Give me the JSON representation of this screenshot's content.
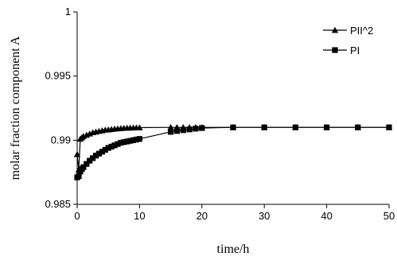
{
  "chart_data": {
    "type": "line",
    "title": "",
    "xlabel": "time/h",
    "ylabel": "molar fraction component A",
    "xlim": [
      0,
      50
    ],
    "ylim": [
      0.985,
      1
    ],
    "x_ticks": [
      "0",
      "10",
      "20",
      "30",
      "40",
      "50"
    ],
    "y_ticks": [
      "0.985",
      "0.99",
      "0.995",
      "1"
    ],
    "grid": false,
    "legend_position": "top-right",
    "series": [
      {
        "name": "PII^2",
        "marker": "triangle",
        "color": "#000000",
        "x": [
          0,
          0.25,
          0.5,
          0.75,
          1,
          1.5,
          2,
          2.5,
          3,
          3.5,
          4,
          4.5,
          5,
          5.5,
          6,
          6.5,
          7,
          7.5,
          8,
          8.5,
          9,
          9.5,
          10,
          15,
          16,
          17,
          18,
          19,
          20,
          25,
          30,
          35,
          40,
          45,
          50
        ],
        "y": [
          0.9889,
          0.9877,
          0.9901,
          0.9902,
          0.9903,
          0.9904,
          0.9905,
          0.9906,
          0.99065,
          0.9907,
          0.99075,
          0.9908,
          0.99082,
          0.99085,
          0.99088,
          0.9909,
          0.99092,
          0.99094,
          0.99095,
          0.99096,
          0.99097,
          0.99098,
          0.99098,
          0.991,
          0.991,
          0.991,
          0.991,
          0.991,
          0.991,
          0.991,
          0.991,
          0.991,
          0.991,
          0.991,
          0.991
        ]
      },
      {
        "name": "PI",
        "marker": "square",
        "color": "#000000",
        "x": [
          0,
          0.25,
          0.5,
          0.75,
          1,
          1.5,
          2,
          2.5,
          3,
          3.5,
          4,
          4.5,
          5,
          5.5,
          6,
          6.5,
          7,
          7.5,
          8,
          8.5,
          9,
          9.5,
          10,
          15,
          16,
          17,
          18,
          19,
          20,
          25,
          30,
          35,
          40,
          45,
          50
        ],
        "y": [
          0.9871,
          0.9872,
          0.98755,
          0.98775,
          0.9879,
          0.98815,
          0.9884,
          0.9886,
          0.9888,
          0.98895,
          0.9891,
          0.98925,
          0.9894,
          0.9895,
          0.9896,
          0.9897,
          0.9898,
          0.98985,
          0.9899,
          0.98995,
          0.99,
          0.99005,
          0.9901,
          0.99065,
          0.99072,
          0.99078,
          0.99084,
          0.9909,
          0.99095,
          0.991,
          0.991,
          0.991,
          0.991,
          0.991,
          0.991
        ]
      }
    ]
  }
}
